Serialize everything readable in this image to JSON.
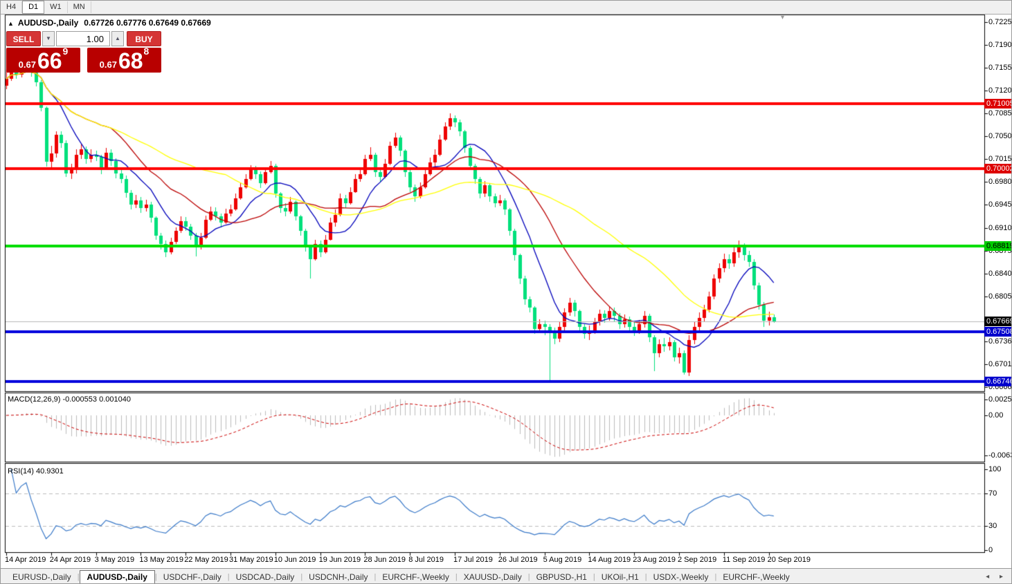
{
  "toolbar": {
    "timeframes": [
      {
        "label": "H4",
        "active": false
      },
      {
        "label": "D1",
        "active": true
      },
      {
        "label": "W1",
        "active": false
      },
      {
        "label": "MN",
        "active": false
      }
    ]
  },
  "title": {
    "collapse_icon": "▲",
    "symbol": "AUDUSD-,Daily",
    "ohlc_text": "0.67726 0.67776 0.67649 0.67669"
  },
  "trade_panel": {
    "sell_label": "SELL",
    "buy_label": "BUY",
    "volume": "1.00",
    "spin_down_icon": "▼",
    "spin_up_icon": "▲",
    "sell_price": {
      "prefix": "0.67",
      "big": "66",
      "sup": "9"
    },
    "buy_price": {
      "prefix": "0.67",
      "big": "68",
      "sup": "8"
    }
  },
  "indicators": {
    "macd_label": "MACD(12,26,9) -0.000553 0.001040",
    "rsi_label": "RSI(14) 40.9301"
  },
  "price_axis": {
    "labels": [
      "0.72250",
      "0.71900",
      "0.71550",
      "0.71200",
      "0.70850",
      "0.70500",
      "0.70150",
      "0.69800",
      "0.69450",
      "0.69100",
      "0.68750",
      "0.68400",
      "0.68050",
      "0.67360",
      "0.67010",
      "0.66660"
    ],
    "tags": [
      {
        "text": "0.71005",
        "bg": "#dd0000",
        "fg": "#ffffff"
      },
      {
        "text": "0.70002",
        "bg": "#dd0000",
        "fg": "#ffffff"
      },
      {
        "text": "0.68819",
        "bg": "#00cc00",
        "fg": "#000000"
      },
      {
        "text": "0.67669",
        "bg": "#000000",
        "fg": "#ffffff"
      },
      {
        "text": "0.67508",
        "bg": "#0000cc",
        "fg": "#ffffff"
      },
      {
        "text": "0.66746",
        "bg": "#0000cc",
        "fg": "#ffffff"
      }
    ]
  },
  "macd_axis": [
    "0.002574",
    "0.00",
    "-0.006326"
  ],
  "rsi_axis": [
    "100",
    "70",
    "30",
    "0"
  ],
  "date_axis": [
    {
      "i": 0,
      "t": "14 Apr 2019"
    },
    {
      "i": 9,
      "t": "24 Apr 2019"
    },
    {
      "i": 18,
      "t": "3 May 2019"
    },
    {
      "i": 27,
      "t": "13 May 2019"
    },
    {
      "i": 36,
      "t": "22 May 2019"
    },
    {
      "i": 45,
      "t": "31 May 2019"
    },
    {
      "i": 54,
      "t": "10 Jun 2019"
    },
    {
      "i": 63,
      "t": "19 Jun 2019"
    },
    {
      "i": 72,
      "t": "28 Jun 2019"
    },
    {
      "i": 81,
      "t": "8 Jul 2019"
    },
    {
      "i": 90,
      "t": "17 Jul 2019"
    },
    {
      "i": 99,
      "t": "26 Jul 2019"
    },
    {
      "i": 108,
      "t": "5 Aug 2019"
    },
    {
      "i": 117,
      "t": "14 Aug 2019"
    },
    {
      "i": 126,
      "t": "23 Aug 2019"
    },
    {
      "i": 135,
      "t": "2 Sep 2019"
    },
    {
      "i": 144,
      "t": "11 Sep 2019"
    },
    {
      "i": 153,
      "t": "20 Sep 2019"
    }
  ],
  "tabs": {
    "items": [
      {
        "label": "EURUSD-,Daily",
        "active": false
      },
      {
        "label": "AUDUSD-,Daily",
        "active": true
      },
      {
        "label": "USDCHF-,Daily",
        "active": false
      },
      {
        "label": "USDCAD-,Daily",
        "active": false
      },
      {
        "label": "USDCNH-,Daily",
        "active": false
      },
      {
        "label": "EURCHF-,Weekly",
        "active": false
      },
      {
        "label": "XAUUSD-,Daily",
        "active": false
      },
      {
        "label": "GBPUSD-,H1",
        "active": false
      },
      {
        "label": "UKOil-,H1",
        "active": false
      },
      {
        "label": "USDX-,Weekly",
        "active": false
      },
      {
        "label": "EURCHF-,Weekly",
        "active": false
      }
    ],
    "scroll_left_icon": "◂",
    "scroll_right_icon": "▸"
  },
  "scroll_marker_icon": "▾",
  "chart_data": {
    "type": "candlestick",
    "symbol": "AUDUSD",
    "timeframe": "Daily",
    "y_axis_range": [
      0.6666,
      0.7225
    ],
    "colors": {
      "up": "#ee0000",
      "down": "#00e07c"
    },
    "first_open": 0.7128,
    "high": [
      0.7152,
      0.7158,
      0.7157,
      0.716,
      0.7168,
      0.7162,
      0.7152,
      0.7136,
      0.7096,
      0.7036,
      0.7058,
      0.7058,
      0.7044,
      0.7008,
      0.703,
      0.7038,
      0.7034,
      0.703,
      0.7028,
      0.7022,
      0.7032,
      0.703,
      0.7016,
      0.6999,
      0.699,
      0.6968,
      0.696,
      0.6957,
      0.6953,
      0.695,
      0.6928,
      0.6902,
      0.689,
      0.6895,
      0.6911,
      0.6928,
      0.6926,
      0.6916,
      0.6902,
      0.6902,
      0.6929,
      0.6942,
      0.6941,
      0.6932,
      0.6939,
      0.6946,
      0.6962,
      0.6979,
      0.6992,
      0.7006,
      0.7005,
      0.6996,
      0.7002,
      0.7012,
      0.7008,
      0.6965,
      0.6948,
      0.6957,
      0.6952,
      0.693,
      0.6908,
      0.6884,
      0.6892,
      0.689,
      0.6899,
      0.6925,
      0.6938,
      0.6962,
      0.696,
      0.6972,
      0.6992,
      0.7,
      0.7022,
      0.7033,
      0.7025,
      0.7,
      0.7015,
      0.7042,
      0.7056,
      0.7051,
      0.703,
      0.6998,
      0.6976,
      0.6979,
      0.6999,
      0.7017,
      0.703,
      0.7052,
      0.7072,
      0.7085,
      0.7082,
      0.7076,
      0.706,
      0.7035,
      0.7008,
      0.6988,
      0.6982,
      0.6977,
      0.6962,
      0.696,
      0.6955,
      0.694,
      0.6908,
      0.687,
      0.6836,
      0.6805,
      0.679,
      0.677,
      0.6768,
      0.6762,
      0.6757,
      0.6765,
      0.6787,
      0.6803,
      0.6799,
      0.6785,
      0.6762,
      0.676,
      0.6772,
      0.6785,
      0.6784,
      0.679,
      0.6788,
      0.6779,
      0.6777,
      0.6774,
      0.6765,
      0.6769,
      0.6782,
      0.6778,
      0.6745,
      0.6739,
      0.6741,
      0.6742,
      0.6738,
      0.6726,
      0.6722,
      0.6745,
      0.6765,
      0.678,
      0.6792,
      0.6812,
      0.6839,
      0.6856,
      0.687,
      0.6869,
      0.688,
      0.689,
      0.6886,
      0.6875,
      0.6862,
      0.6826,
      0.6796,
      0.6781,
      0.67776
    ],
    "low": [
      0.7122,
      0.7135,
      0.7138,
      0.714,
      0.7149,
      0.7141,
      0.7127,
      0.7088,
      0.7004,
      0.7003,
      0.7018,
      0.7032,
      0.6988,
      0.6985,
      0.6993,
      0.7015,
      0.7008,
      0.701,
      0.7012,
      0.6992,
      0.6998,
      0.7005,
      0.6986,
      0.6978,
      0.6956,
      0.6938,
      0.694,
      0.6933,
      0.6935,
      0.6918,
      0.6891,
      0.6877,
      0.6865,
      0.6869,
      0.6885,
      0.6902,
      0.6905,
      0.6891,
      0.6866,
      0.6877,
      0.6893,
      0.692,
      0.6921,
      0.6911,
      0.6916,
      0.6928,
      0.6936,
      0.6953,
      0.697,
      0.6983,
      0.6985,
      0.6971,
      0.6976,
      0.6993,
      0.6956,
      0.6933,
      0.6927,
      0.6932,
      0.6921,
      0.6898,
      0.6873,
      0.6832,
      0.686,
      0.6865,
      0.687,
      0.689,
      0.6912,
      0.6928,
      0.694,
      0.6946,
      0.6963,
      0.698,
      0.699,
      0.7012,
      0.6988,
      0.698,
      0.6986,
      0.7006,
      0.7032,
      0.702,
      0.6988,
      0.6965,
      0.695,
      0.6955,
      0.697,
      0.699,
      0.7004,
      0.702,
      0.7043,
      0.706,
      0.7064,
      0.705,
      0.7025,
      0.6998,
      0.6977,
      0.6955,
      0.6957,
      0.695,
      0.6941,
      0.6943,
      0.693,
      0.6898,
      0.686,
      0.6824,
      0.6792,
      0.678,
      0.6748,
      0.675,
      0.6745,
      0.6677,
      0.6732,
      0.6735,
      0.6753,
      0.6775,
      0.6774,
      0.675,
      0.674,
      0.6738,
      0.6747,
      0.676,
      0.6764,
      0.6768,
      0.6767,
      0.6755,
      0.6757,
      0.675,
      0.6744,
      0.6748,
      0.6757,
      0.6735,
      0.669,
      0.6712,
      0.672,
      0.6722,
      0.6705,
      0.6702,
      0.6685,
      0.6683,
      0.6732,
      0.6752,
      0.6766,
      0.678,
      0.68,
      0.6826,
      0.6842,
      0.6847,
      0.685,
      0.6864,
      0.686,
      0.685,
      0.6815,
      0.6785,
      0.6758,
      0.676,
      0.67649
    ],
    "close": [
      0.7138,
      0.715,
      0.7145,
      0.7152,
      0.7158,
      0.7148,
      0.7133,
      0.7094,
      0.7011,
      0.7024,
      0.7052,
      0.704,
      0.6993,
      0.6998,
      0.7022,
      0.703,
      0.7015,
      0.7022,
      0.7019,
      0.7,
      0.7025,
      0.7012,
      0.6993,
      0.6985,
      0.6963,
      0.6945,
      0.6952,
      0.694,
      0.6946,
      0.6925,
      0.6898,
      0.6885,
      0.6872,
      0.6888,
      0.6905,
      0.692,
      0.6912,
      0.6898,
      0.688,
      0.6895,
      0.6922,
      0.6935,
      0.6928,
      0.6918,
      0.6932,
      0.6938,
      0.6955,
      0.6972,
      0.6985,
      0.7,
      0.6992,
      0.6978,
      0.6995,
      0.7005,
      0.6962,
      0.694,
      0.6935,
      0.695,
      0.6928,
      0.6905,
      0.688,
      0.6862,
      0.6885,
      0.6872,
      0.6892,
      0.6918,
      0.693,
      0.6955,
      0.6948,
      0.6965,
      0.6985,
      0.6992,
      0.7015,
      0.7022,
      0.6995,
      0.6988,
      0.7008,
      0.7035,
      0.7048,
      0.7028,
      0.6995,
      0.6972,
      0.6958,
      0.6972,
      0.6992,
      0.701,
      0.7022,
      0.7045,
      0.7065,
      0.7078,
      0.7072,
      0.7058,
      0.7032,
      0.7005,
      0.6985,
      0.6962,
      0.6975,
      0.6958,
      0.6948,
      0.6952,
      0.6938,
      0.6905,
      0.6868,
      0.6832,
      0.68,
      0.6788,
      0.6755,
      0.6762,
      0.6758,
      0.6752,
      0.674,
      0.6758,
      0.678,
      0.6795,
      0.6782,
      0.6758,
      0.6748,
      0.6752,
      0.6765,
      0.6778,
      0.6772,
      0.6782,
      0.6775,
      0.6762,
      0.677,
      0.6758,
      0.6752,
      0.6762,
      0.6775,
      0.6742,
      0.6718,
      0.6732,
      0.6728,
      0.6735,
      0.6712,
      0.6718,
      0.6688,
      0.6738,
      0.6758,
      0.6772,
      0.6785,
      0.6805,
      0.6832,
      0.6848,
      0.6862,
      0.6855,
      0.6872,
      0.6882,
      0.6868,
      0.6858,
      0.6822,
      0.6792,
      0.6768,
      0.6773,
      0.67669
    ],
    "levels": [
      {
        "price": 0.71005,
        "color": "#ff0000",
        "width": 4
      },
      {
        "price": 0.70002,
        "color": "#ff0000",
        "width": 4
      },
      {
        "price": 0.68819,
        "color": "#00dd00",
        "width": 4
      },
      {
        "price": 0.67508,
        "color": "#0000dd",
        "width": 4
      },
      {
        "price": 0.66746,
        "color": "#0000dd",
        "width": 4
      },
      {
        "price": 0.67669,
        "color": "#b8b8b8",
        "width": 1
      }
    ],
    "moving_averages": [
      {
        "period": 10,
        "color": "#0000bb"
      },
      {
        "period": 22,
        "color": "#bb0000"
      },
      {
        "period": 45,
        "color": "#ffff00"
      }
    ],
    "macd": {
      "fast": 12,
      "slow": 26,
      "signal": 9,
      "current_macd": -0.000553,
      "current_signal": 0.00104,
      "hist_color": "#bbbbbb",
      "signal_color": "#cc0000",
      "range": [
        -0.006326,
        0.002574
      ]
    },
    "rsi": {
      "period": 14,
      "current": 40.9301,
      "color": "#3878c8",
      "levels": [
        30,
        70
      ]
    }
  }
}
